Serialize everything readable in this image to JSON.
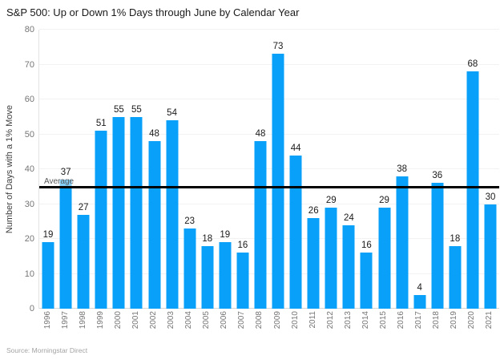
{
  "title": "S&P 500: Up or Down 1% Days through June by Calendar Year",
  "source": "Source: Morningstar Direct",
  "colors": {
    "bar": "#09a0fa",
    "average_line": "#000000",
    "gridline": "#f2f2f2",
    "axis_line": "#d6d6d6",
    "tick_text": "#757575",
    "value_text": "#1a1a1a",
    "title_text": "#1a1a1a",
    "source_text": "#a3a3a3"
  },
  "chart_data": {
    "type": "bar",
    "title": "S&P 500: Up or Down 1% Days through June by Calendar Year",
    "categories": [
      "1996",
      "1997",
      "1998",
      "1999",
      "2000",
      "2001",
      "2002",
      "2003",
      "2004",
      "2005",
      "2006",
      "2007",
      "2008",
      "2009",
      "2010",
      "2011",
      "2012",
      "2013",
      "2014",
      "2015",
      "2016",
      "2017",
      "2018",
      "2019",
      "2020",
      "2021"
    ],
    "values": [
      19,
      37,
      27,
      51,
      55,
      55,
      48,
      54,
      23,
      18,
      19,
      16,
      48,
      73,
      44,
      26,
      29,
      24,
      16,
      29,
      38,
      4,
      36,
      18,
      68,
      30
    ],
    "xlabel": "",
    "ylabel": "Number of Days with a 1% Move",
    "ylim": [
      0,
      80
    ],
    "yticks": [
      0,
      10,
      20,
      30,
      40,
      50,
      60,
      70,
      80
    ],
    "grid": true,
    "legend": false,
    "bar_labels_shown": true,
    "annotations": [
      {
        "type": "hline",
        "y": 34.8,
        "label": "Average"
      }
    ]
  }
}
